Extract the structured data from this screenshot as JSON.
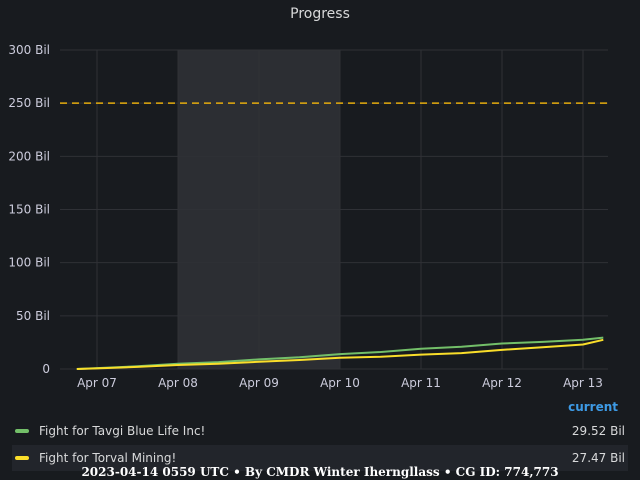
{
  "chart_data": {
    "type": "line",
    "title": "Progress",
    "x": [
      "Apr 06 18:00",
      "Apr 07 00:00",
      "Apr 07 12:00",
      "Apr 08 00:00",
      "Apr 08 12:00",
      "Apr 09 00:00",
      "Apr 09 12:00",
      "Apr 10 00:00",
      "Apr 10 12:00",
      "Apr 11 00:00",
      "Apr 11 12:00",
      "Apr 12 00:00",
      "Apr 12 12:00",
      "Apr 13 00:00",
      "Apr 13 06:00"
    ],
    "x_ticks": [
      "Apr 07",
      "Apr 08",
      "Apr 09",
      "Apr 10",
      "Apr 11",
      "Apr 12",
      "Apr 13"
    ],
    "y_ticks": [
      "0",
      "50 Bil",
      "100 Bil",
      "150 Bil",
      "200 Bil",
      "250 Bil",
      "300 Bil"
    ],
    "ylim": [
      0,
      300
    ],
    "y_unit": "Bil",
    "series": [
      {
        "name": "Fight for Tavgi Blue Life Inc!",
        "color": "#73bf69",
        "values": [
          0,
          0.8,
          2.5,
          5,
          6.5,
          9,
          11,
          14,
          16,
          19,
          21,
          24,
          25.5,
          27.5,
          29.52
        ],
        "current": "29.52 Bil"
      },
      {
        "name": "Fight for Torval Mining!",
        "color": "#fade2a",
        "values": [
          0,
          0.6,
          2,
          3.8,
          5,
          6.8,
          8.5,
          10.5,
          11.5,
          13.5,
          15,
          18,
          20.5,
          23,
          27.47
        ],
        "current": "27.47 Bil"
      }
    ],
    "threshold": {
      "value": 250,
      "color": "#e5ac0e"
    },
    "shaded_region": [
      "Apr 08 00:00",
      "Apr 10 00:00"
    ],
    "legend_header": "current",
    "legend_placement": "bottom",
    "grid": true
  },
  "footer": "2023-04-14 0559 UTC • By CMDR Winter Iherngllass • CG ID: 774,773"
}
